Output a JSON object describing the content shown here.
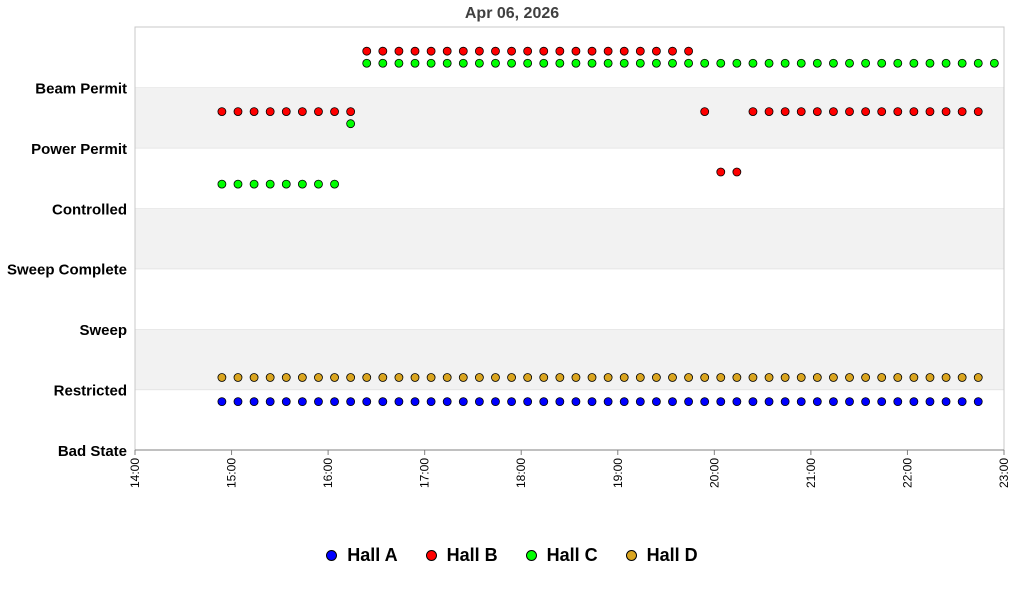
{
  "chart_data": {
    "type": "scatter",
    "title": "Apr 06, 2026",
    "xlabel": "",
    "ylabel": "",
    "y_categories": [
      "Bad State",
      "Restricted",
      "Sweep",
      "Sweep Complete",
      "Controlled",
      "Power Permit",
      "Beam Permit"
    ],
    "x_ticks": [
      "14:00",
      "15:00",
      "16:00",
      "17:00",
      "18:00",
      "19:00",
      "20:00",
      "21:00",
      "22:00",
      "23:00"
    ],
    "xlim": [
      "14:00",
      "23:00"
    ],
    "ylim": [
      0,
      7
    ],
    "grid": "horizontal bands",
    "legend_position": "bottom",
    "series": [
      {
        "name": "Hall A",
        "color": "#0000ff",
        "start": "14:54",
        "interval_minutes": 10,
        "count": 48,
        "state": "Restricted",
        "level": 0.8
      },
      {
        "name": "Hall B",
        "color": "#ff0000",
        "segments": [
          {
            "start": "14:54",
            "interval_minutes": 10,
            "count": 9,
            "state": "Power Permit",
            "level": 5.6
          },
          {
            "start": "16:24",
            "interval_minutes": 10,
            "count": 21,
            "state": "Beam Permit",
            "level": 6.6
          },
          {
            "start": "19:54",
            "interval_minutes": 10,
            "count": 1,
            "state": "Power Permit",
            "level": 5.6
          },
          {
            "start": "20:04",
            "interval_minutes": 10,
            "count": 2,
            "state": "Controlled",
            "level": 4.6
          },
          {
            "start": "20:24",
            "interval_minutes": 10,
            "count": 15,
            "state": "Power Permit",
            "level": 5.6
          }
        ]
      },
      {
        "name": "Hall C",
        "color": "#00ff00",
        "segments": [
          {
            "start": "14:54",
            "interval_minutes": 10,
            "count": 8,
            "state": "Controlled",
            "level": 4.4
          },
          {
            "start": "16:14",
            "interval_minutes": 10,
            "count": 1,
            "state": "Power Permit",
            "level": 5.4
          },
          {
            "start": "16:24",
            "interval_minutes": 10,
            "count": 40,
            "state": "Beam Permit",
            "level": 6.4
          }
        ]
      },
      {
        "name": "Hall D",
        "color": "#daa520",
        "start": "14:54",
        "interval_minutes": 10,
        "count": 48,
        "state": "Restricted",
        "level": 1.2
      }
    ]
  }
}
